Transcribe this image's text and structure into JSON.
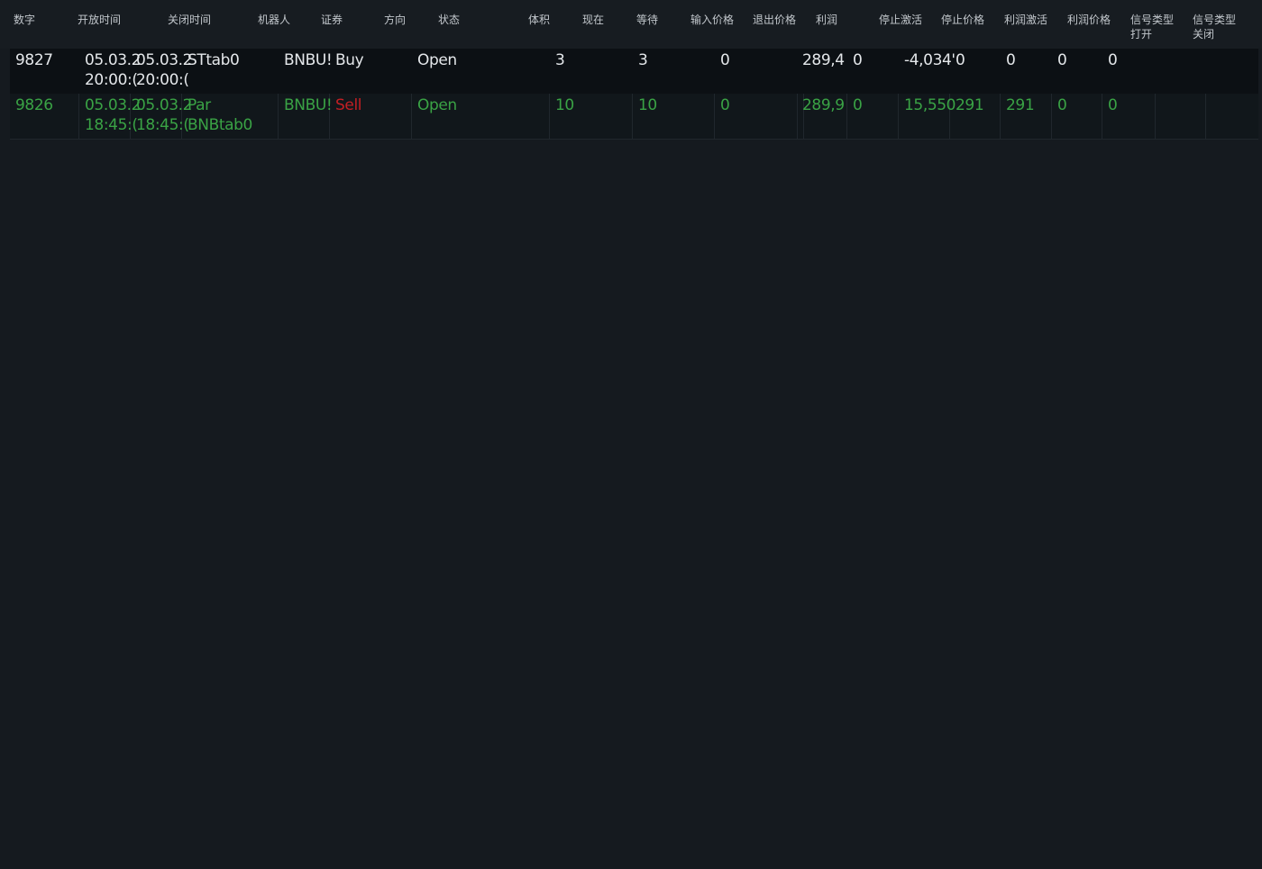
{
  "columns": {
    "number": "数字",
    "open_time": "开放时间",
    "close_time": "关闭时间",
    "robot": "机器人",
    "security": "证券",
    "direction": "方向",
    "state": "状态",
    "volume": "体积",
    "now": "现在",
    "waiting": "等待",
    "entry_price": "输入价格",
    "exit_price": "退出价格",
    "profit": "利润",
    "stop_activation": "停止激活",
    "stop_price": "停止价格",
    "profit_activation": "利润激活",
    "profit_price": "利润价格",
    "signal_type_open": "信号类型\n打开",
    "signal_type_close": "信号类型\n关闭"
  },
  "rows": [
    {
      "number": "9827",
      "open_date": "05.03.2",
      "open_time": "20:00:(",
      "close_date": "05.03.2",
      "close_time": "20:00:(",
      "robot_line1": "STtab0",
      "robot_line2": "",
      "security": "BNBU!",
      "direction": "Buy",
      "state": "Open",
      "volume": "3",
      "now": "3",
      "waiting": "0",
      "entry_price": "",
      "exit_price": "289,4",
      "profit": "0",
      "stop_activation": "-4,034'",
      "stop_price": "0",
      "profit_activation": "0",
      "profit_price": "0",
      "signal_type_open": "0",
      "signal_type_close": ""
    },
    {
      "number": "9826",
      "open_date": "05.03.2",
      "open_time": "18:45:(",
      "close_date": "05.03.2",
      "close_time": "18:45:(",
      "robot_line1": "Par",
      "robot_line2": "BNBtab0",
      "security": "BNBU!",
      "direction": "Sell",
      "state": "Open",
      "volume": "10",
      "now": "10",
      "waiting": "0",
      "entry_price": "",
      "exit_price": "289,9",
      "profit": "0",
      "stop_activation": "15,550",
      "stop_price": "291",
      "profit_activation": "291",
      "profit_price": "0",
      "signal_type_open": "0",
      "signal_type_close": ""
    }
  ],
  "colors": {
    "background": "#151a1f",
    "header_text": "#c2c7cc",
    "row_text_default": "#e4e7ea",
    "row_text_green": "#3aa345",
    "sell_red": "#c31f24"
  }
}
